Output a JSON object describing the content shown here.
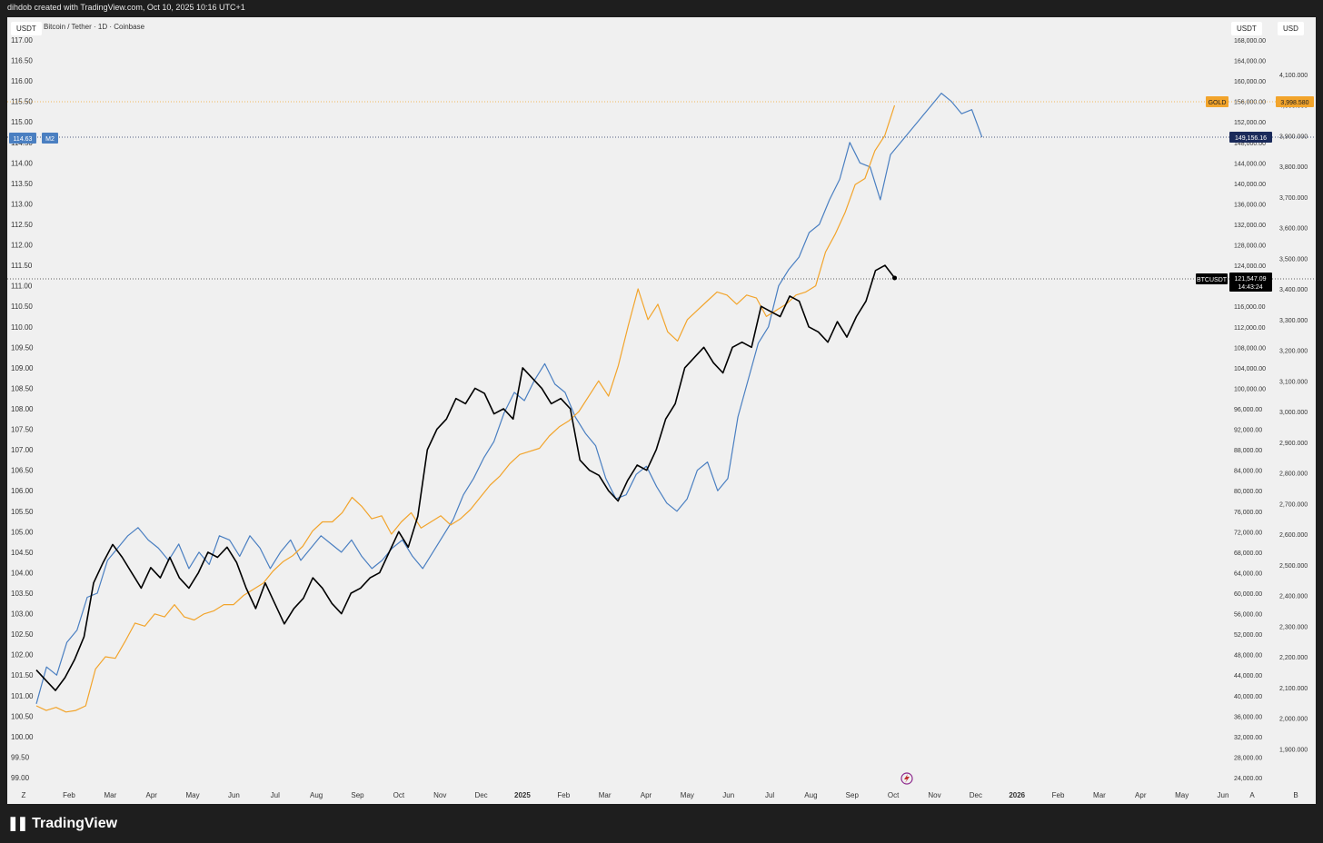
{
  "header": {
    "caption": "dihdob created with TradingView.com, Oct 10, 2025 10:16 UTC+1",
    "symbol": "Bitcoin / Tether · 1D · Coinbase",
    "left_currency": "USDT",
    "right_currency_1": "USDT",
    "right_currency_2": "USD"
  },
  "footer": {
    "brand": "TradingView",
    "logo_glyph": "❚❚"
  },
  "colors": {
    "m2": "#4a7fc1",
    "gold": "#f2a42b",
    "btc": "#000000",
    "bg": "#f0f0f0",
    "frame": "#1e1e1e"
  },
  "chart_data": {
    "type": "line",
    "x_ticks": [
      "Z",
      "Feb",
      "Mar",
      "Apr",
      "May",
      "Jun",
      "Jul",
      "Aug",
      "Sep",
      "Oct",
      "Nov",
      "Dec",
      "2025",
      "Feb",
      "Mar",
      "Apr",
      "May",
      "Jun",
      "Jul",
      "Aug",
      "Sep",
      "Oct",
      "Nov",
      "Dec",
      "2026",
      "Feb",
      "Mar",
      "Apr",
      "May",
      "Jun",
      "A",
      "B"
    ],
    "left_axis": {
      "ylim": [
        99,
        117
      ],
      "ticks": [
        "117.00",
        "116.50",
        "116.00",
        "115.50",
        "115.00",
        "114.50",
        "114.00",
        "113.50",
        "113.00",
        "112.50",
        "112.00",
        "111.50",
        "111.00",
        "110.50",
        "110.00",
        "109.50",
        "109.00",
        "108.50",
        "108.00",
        "107.50",
        "107.00",
        "106.50",
        "106.00",
        "105.50",
        "105.00",
        "104.50",
        "104.00",
        "103.50",
        "103.00",
        "102.50",
        "102.00",
        "101.50",
        "101.00",
        "100.50",
        "100.00",
        "99.50",
        "99.00"
      ]
    },
    "right_axis_1": {
      "ylim": [
        24000,
        168000
      ],
      "ticks": [
        "168,000.00",
        "164,000.00",
        "160,000.00",
        "156,000.00",
        "152,000.00",
        "148,000.00",
        "144,000.00",
        "140,000.00",
        "136,000.00",
        "132,000.00",
        "128,000.00",
        "124,000.00",
        "120,000.00",
        "116,000.00",
        "112,000.00",
        "108,000.00",
        "104,000.00",
        "100,000.00",
        "96,000.00",
        "92,000.00",
        "88,000.00",
        "84,000.00",
        "80,000.00",
        "76,000.00",
        "72,000.00",
        "68,000.00",
        "64,000.00",
        "60,000.00",
        "56,000.00",
        "52,000.00",
        "48,000.00",
        "44,000.00",
        "40,000.00",
        "36,000.00",
        "32,000.00",
        "28,000.00",
        "24,000.00"
      ]
    },
    "right_axis_2": {
      "ylim": [
        1800,
        4200
      ],
      "ticks": [
        "4,100.000",
        "4,000.000",
        "3,900.000",
        "3,800.000",
        "3,700.000",
        "3,600.000",
        "3,500.000",
        "3,400.000",
        "3,300.000",
        "3,200.000",
        "3,100.000",
        "3,000.000",
        "2,900.000",
        "2,800.000",
        "2,700.000",
        "2,600.000",
        "2,500.000",
        "2,400.000",
        "2,300.000",
        "2,200.000",
        "2,100.000",
        "2,000.000",
        "1,900.000"
      ]
    },
    "series": [
      {
        "name": "M2",
        "axis": "left",
        "x_start": "2024-01-01",
        "x_end": "2025-12-15",
        "last_label": "114.63",
        "values": [
          100.8,
          101.7,
          101.5,
          102.3,
          102.6,
          103.4,
          103.5,
          104.3,
          104.6,
          104.9,
          105.1,
          104.8,
          104.6,
          104.3,
          104.7,
          104.1,
          104.5,
          104.2,
          104.9,
          104.8,
          104.4,
          104.9,
          104.6,
          104.1,
          104.5,
          104.8,
          104.3,
          104.6,
          104.9,
          104.7,
          104.5,
          104.8,
          104.4,
          104.1,
          104.3,
          104.6,
          104.8,
          104.4,
          104.1,
          104.5,
          104.9,
          105.3,
          105.9,
          106.3,
          106.8,
          107.2,
          107.9,
          108.4,
          108.2,
          108.7,
          109.1,
          108.6,
          108.4,
          107.8,
          107.4,
          107.1,
          106.3,
          105.8,
          105.9,
          106.4,
          106.6,
          106.1,
          105.7,
          105.5,
          105.8,
          106.5,
          106.7,
          106.0,
          106.3,
          107.8,
          108.7,
          109.6,
          110.0,
          111.0,
          111.4,
          111.7,
          112.3,
          112.5,
          113.1,
          113.6,
          114.5,
          114.0,
          113.9,
          113.1,
          114.2,
          114.5,
          114.8,
          115.1,
          115.4,
          115.7,
          115.5,
          115.2,
          115.3,
          114.63
        ]
      },
      {
        "name": "GOLD",
        "axis": "right_2",
        "x_start": "2024-01-01",
        "x_end": "2025-10-10",
        "last_label": "3,998.580",
        "values": [
          2040,
          2025,
          2035,
          2020,
          2025,
          2040,
          2160,
          2200,
          2195,
          2250,
          2310,
          2300,
          2340,
          2330,
          2370,
          2330,
          2320,
          2340,
          2350,
          2370,
          2370,
          2400,
          2420,
          2440,
          2480,
          2510,
          2530,
          2560,
          2610,
          2640,
          2640,
          2670,
          2720,
          2690,
          2650,
          2660,
          2600,
          2640,
          2670,
          2620,
          2640,
          2660,
          2630,
          2650,
          2680,
          2720,
          2760,
          2790,
          2830,
          2860,
          2870,
          2880,
          2920,
          2950,
          2970,
          3000,
          3050,
          3100,
          3050,
          3150,
          3280,
          3400,
          3300,
          3350,
          3260,
          3230,
          3300,
          3330,
          3360,
          3390,
          3380,
          3350,
          3380,
          3370,
          3310,
          3330,
          3350,
          3380,
          3390,
          3410,
          3520,
          3580,
          3650,
          3740,
          3760,
          3850,
          3900,
          3998.58
        ]
      },
      {
        "name": "BTCUSDT",
        "axis": "right_1",
        "x_start": "2024-01-01",
        "x_end": "2025-10-10",
        "last_label": "121,547.09",
        "values": [
          45000,
          43000,
          41000,
          43500,
          47000,
          51500,
          62000,
          66000,
          69500,
          67000,
          64000,
          61000,
          65000,
          63000,
          67000,
          63000,
          61000,
          64000,
          68000,
          67000,
          69000,
          66000,
          61000,
          57000,
          62000,
          58000,
          54000,
          57000,
          59000,
          63000,
          61000,
          58000,
          56000,
          60000,
          61000,
          63000,
          64000,
          68000,
          72000,
          69000,
          75000,
          88000,
          92000,
          94000,
          98000,
          97000,
          100000,
          99000,
          95000,
          96000,
          94000,
          104000,
          102000,
          100000,
          97000,
          98000,
          96000,
          86000,
          84000,
          83000,
          80000,
          78000,
          82000,
          85000,
          84000,
          88000,
          94000,
          97000,
          104000,
          106000,
          108000,
          105000,
          103000,
          108000,
          109000,
          108000,
          116000,
          115000,
          114000,
          118000,
          117000,
          112000,
          111000,
          109000,
          113000,
          110000,
          114000,
          117000,
          123000,
          124000,
          121547.09
        ]
      }
    ],
    "labels": {
      "m2_tag": "M2",
      "m2_value": "114.63",
      "m2_right_value": "149,156.16",
      "gold_tag": "GOLD",
      "gold_value": "3,998.580",
      "btc_tag": "BTCUSDT",
      "btc_value": "121,547.09",
      "btc_timer": "14:43:24"
    },
    "grid": false,
    "legend": "none"
  }
}
